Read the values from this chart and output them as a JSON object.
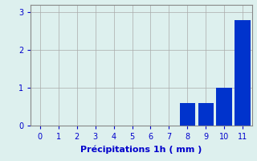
{
  "categories": [
    0,
    1,
    2,
    3,
    4,
    5,
    6,
    7,
    8,
    9,
    10,
    11
  ],
  "values": [
    0,
    0,
    0,
    0,
    0,
    0,
    0,
    0,
    0.6,
    0.6,
    1.0,
    2.8
  ],
  "bar_color": "#0033cc",
  "background_color": "#ddf0ee",
  "plot_bg_color": "#ddf0ee",
  "xlabel": "Précipitations 1h ( mm )",
  "ylim": [
    0,
    3.2
  ],
  "xlim": [
    -0.5,
    11.5
  ],
  "yticks": [
    0,
    1,
    2,
    3
  ],
  "xticks": [
    0,
    1,
    2,
    3,
    4,
    5,
    6,
    7,
    8,
    9,
    10,
    11
  ],
  "xlabel_fontsize": 8,
  "tick_fontsize": 7,
  "grid_color": "#aaaaaa",
  "tick_color": "#0000cc",
  "label_color": "#0000cc"
}
